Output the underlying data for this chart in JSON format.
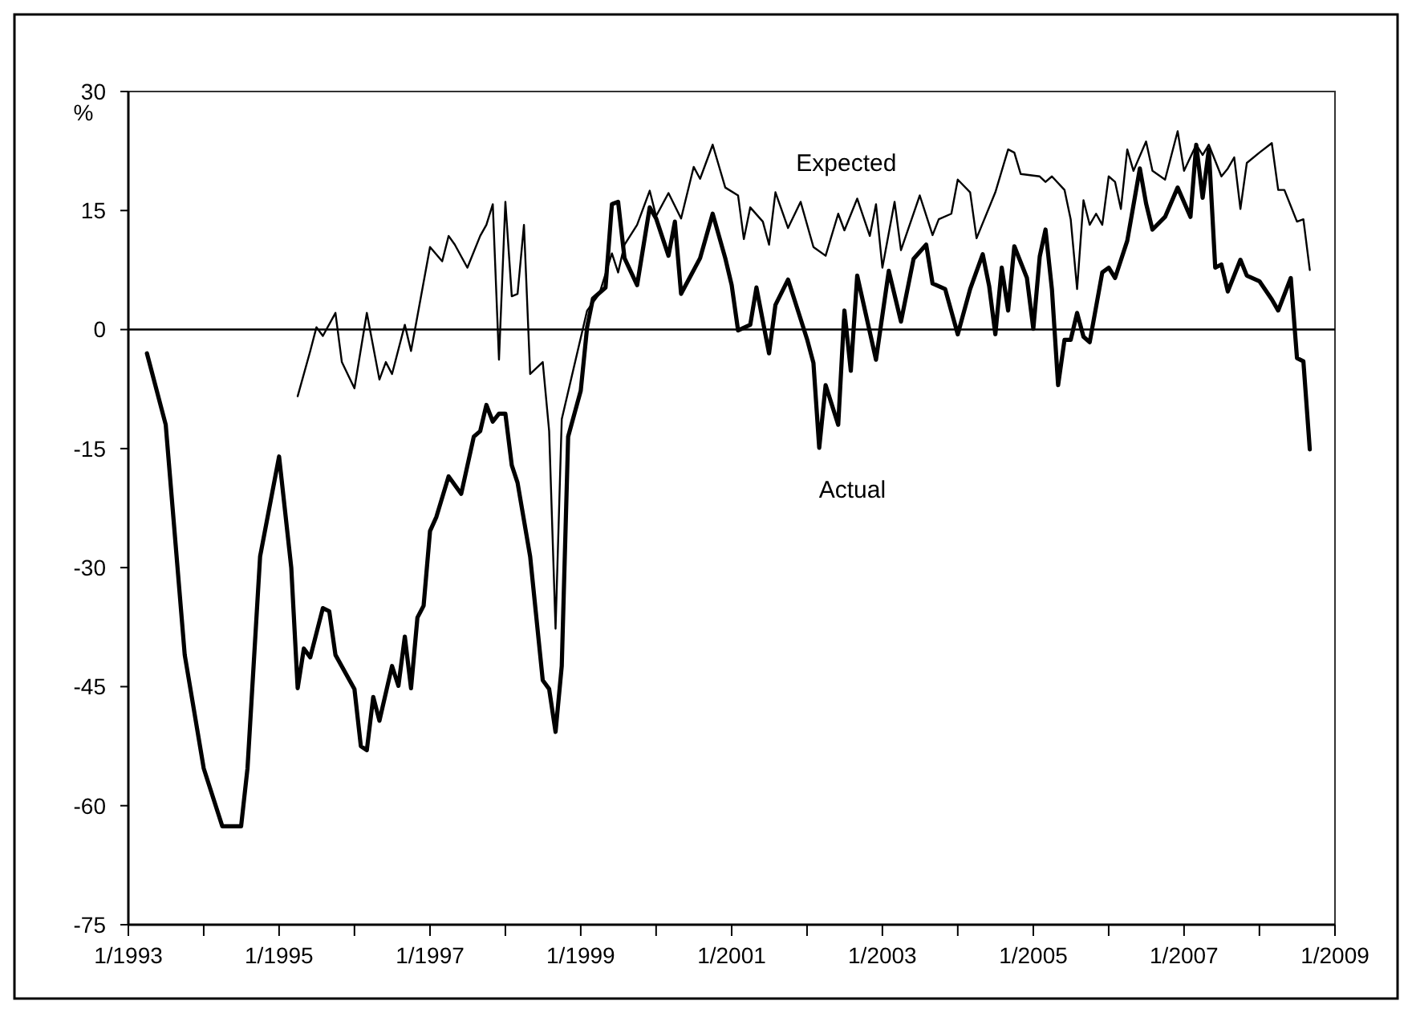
{
  "chart_data": {
    "type": "line",
    "ylabel": "%",
    "xlim": [
      "1993-01",
      "2009-01"
    ],
    "xticks": [
      {
        "value": "1993-01",
        "label": "1/1993"
      },
      {
        "value": "1994-01",
        "label": null
      },
      {
        "value": "1995-01",
        "label": "1/1995"
      },
      {
        "value": "1996-01",
        "label": null
      },
      {
        "value": "1997-01",
        "label": "1/1997"
      },
      {
        "value": "1998-01",
        "label": null
      },
      {
        "value": "1999-01",
        "label": "1/1999"
      },
      {
        "value": "2000-01",
        "label": null
      },
      {
        "value": "2001-01",
        "label": "1/2001"
      },
      {
        "value": "2002-01",
        "label": null
      },
      {
        "value": "2003-01",
        "label": "1/2003"
      },
      {
        "value": "2004-01",
        "label": null
      },
      {
        "value": "2005-01",
        "label": "1/2005"
      },
      {
        "value": "2006-01",
        "label": null
      },
      {
        "value": "2007-01",
        "label": "1/2007"
      },
      {
        "value": "2008-01",
        "label": null
      },
      {
        "value": "2009-01",
        "label": "1/2009"
      }
    ],
    "ylim": [
      -75,
      30
    ],
    "yticks": [
      30,
      15,
      0,
      -15,
      -30,
      -45,
      -60,
      -75
    ],
    "grid": false,
    "legend": false,
    "marker": "none",
    "ref_lines": [
      {
        "axis": "y",
        "value": 0,
        "color": "#000000"
      }
    ],
    "series": [
      {
        "name": "Expected",
        "color": "#000000",
        "line_style": "solid",
        "x": [
          "1995-04",
          "1995-06",
          "1995-07",
          "1995-08",
          "1995-10",
          "1995-11",
          "1996-01",
          "1996-03",
          "1996-05",
          "1996-06",
          "1996-07",
          "1996-09",
          "1996-10",
          "1996-11",
          "1997-01",
          "1997-03",
          "1997-04",
          "1997-05",
          "1997-07",
          "1997-09",
          "1997-10",
          "1997-11",
          "1997-12",
          "1998-01",
          "1998-02",
          "1998-03",
          "1998-04",
          "1998-05",
          "1998-07",
          "1998-08",
          "1998-09",
          "1998-10",
          "1999-02",
          "1999-04",
          "1999-06",
          "1999-07",
          "1999-08",
          "1999-10",
          "1999-12",
          "2000-01",
          "2000-03",
          "2000-05",
          "2000-07",
          "2000-08",
          "2000-10",
          "2000-12",
          "2001-02",
          "2001-03",
          "2001-04",
          "2001-06",
          "2001-07",
          "2001-08",
          "2001-10",
          "2001-12",
          "2002-02",
          "2002-04",
          "2002-06",
          "2002-07",
          "2002-09",
          "2002-11",
          "2002-12",
          "2003-01",
          "2003-03",
          "2003-04",
          "2003-07",
          "2003-09",
          "2003-10",
          "2003-12",
          "2004-01",
          "2004-03",
          "2004-04",
          "2004-07",
          "2004-09",
          "2004-10",
          "2004-11",
          "2005-02",
          "2005-03",
          "2005-04",
          "2005-06",
          "2005-07",
          "2005-08",
          "2005-09",
          "2005-10",
          "2005-11",
          "2005-12",
          "2006-01",
          "2006-02",
          "2006-03",
          "2006-04",
          "2006-05",
          "2006-07",
          "2006-08",
          "2006-10",
          "2006-12",
          "2007-01",
          "2007-03",
          "2007-04",
          "2007-05",
          "2007-07",
          "2007-08",
          "2007-09",
          "2007-10",
          "2007-11",
          "2008-01",
          "2008-03",
          "2008-04",
          "2008-05",
          "2008-07",
          "2008-08",
          "2008-09"
        ],
        "values": [
          -8.4,
          -2.7,
          0.3,
          -0.8,
          2.1,
          -4.1,
          -7.4,
          2.1,
          -6.3,
          -4.1,
          -5.6,
          0.6,
          -2.7,
          1.7,
          10.4,
          8.6,
          11.8,
          10.7,
          7.8,
          11.8,
          13.2,
          15.8,
          -3.8,
          16.1,
          4.2,
          4.5,
          13.2,
          -5.6,
          -4.1,
          -12.8,
          -37.7,
          -11.3,
          2.4,
          4.5,
          9.6,
          7.2,
          10.7,
          13.2,
          17.5,
          14.3,
          17.2,
          14.0,
          20.5,
          19.0,
          23.3,
          17.9,
          16.9,
          11.4,
          15.4,
          13.6,
          10.7,
          17.3,
          12.8,
          16.1,
          10.4,
          9.3,
          14.6,
          12.5,
          16.5,
          11.8,
          15.8,
          7.8,
          16.1,
          10.0,
          16.9,
          11.9,
          13.9,
          14.6,
          18.9,
          17.3,
          11.5,
          17.3,
          22.7,
          22.3,
          19.6,
          19.3,
          18.6,
          19.3,
          17.6,
          13.9,
          5.1,
          16.3,
          13.2,
          14.6,
          13.2,
          19.3,
          18.6,
          15.2,
          22.7,
          20.0,
          23.7,
          20.0,
          18.9,
          25.0,
          20.0,
          23.3,
          22.0,
          23.3,
          19.3,
          20.3,
          21.7,
          15.2,
          21.0,
          22.3,
          23.5,
          17.6,
          17.6,
          13.6,
          13.9,
          7.5
        ]
      },
      {
        "name": "Actual",
        "color": "#000000",
        "line_style": "solid",
        "x": [
          "1993-04",
          "1993-07",
          "1993-10",
          "1994-01",
          "1994-04",
          "1994-07",
          "1994-08",
          "1994-10",
          "1995-01",
          "1995-03",
          "1995-04",
          "1995-05",
          "1995-06",
          "1995-08",
          "1995-09",
          "1995-10",
          "1996-01",
          "1996-02",
          "1996-03",
          "1996-04",
          "1996-05",
          "1996-07",
          "1996-08",
          "1996-09",
          "1996-10",
          "1996-11",
          "1996-12",
          "1997-01",
          "1997-02",
          "1997-04",
          "1997-06",
          "1997-08",
          "1997-09",
          "1997-10",
          "1997-11",
          "1997-12",
          "1998-01",
          "1998-02",
          "1998-03",
          "1998-05",
          "1998-07",
          "1998-08",
          "1998-09",
          "1998-10",
          "1998-11",
          "1999-01",
          "1999-02",
          "1999-03",
          "1999-05",
          "1999-06",
          "1999-07",
          "1999-08",
          "1999-10",
          "1999-12",
          "2000-01",
          "2000-03",
          "2000-04",
          "2000-05",
          "2000-08",
          "2000-10",
          "2000-12",
          "2001-01",
          "2001-02",
          "2001-04",
          "2001-05",
          "2001-07",
          "2001-08",
          "2001-10",
          "2002-01",
          "2002-02",
          "2002-03",
          "2002-04",
          "2002-06",
          "2002-07",
          "2002-08",
          "2002-09",
          "2002-12",
          "2003-02",
          "2003-04",
          "2003-06",
          "2003-08",
          "2003-09",
          "2003-11",
          "2004-01",
          "2004-03",
          "2004-05",
          "2004-06",
          "2004-07",
          "2004-08",
          "2004-09",
          "2004-10",
          "2004-12",
          "2005-01",
          "2005-02",
          "2005-03",
          "2005-04",
          "2005-05",
          "2005-06",
          "2005-07",
          "2005-08",
          "2005-09",
          "2005-10",
          "2005-12",
          "2006-01",
          "2006-02",
          "2006-04",
          "2006-06",
          "2006-07",
          "2006-08",
          "2006-10",
          "2006-12",
          "2007-02",
          "2007-03",
          "2007-04",
          "2007-05",
          "2007-06",
          "2007-07",
          "2007-08",
          "2007-10",
          "2007-11",
          "2008-01",
          "2008-03",
          "2008-04",
          "2008-06",
          "2008-07",
          "2008-08",
          "2008-09"
        ],
        "values": [
          -3,
          -12.0,
          -41,
          -55.3,
          -62.6,
          -62.6,
          -55.3,
          -28.6,
          -16.0,
          -30,
          -45.2,
          -40.2,
          -41.3,
          -35.1,
          -35.5,
          -41,
          -45.3,
          -52.5,
          -53,
          -46.3,
          -49.3,
          -42.4,
          -44.9,
          -38.7,
          -45.2,
          -36.3,
          -34.8,
          -25.4,
          -23.6,
          -18.5,
          -20.7,
          -13.5,
          -12.8,
          -9.5,
          -11.6,
          -10.6,
          -10.6,
          -17.1,
          -19.3,
          -28.6,
          -44.2,
          -45.3,
          -50.7,
          -42.4,
          -13.5,
          -7.7,
          0.3,
          3.9,
          5.3,
          15.8,
          16.1,
          9.0,
          5.6,
          15.4,
          14.0,
          9.3,
          13.6,
          4.5,
          9.0,
          14.6,
          9.0,
          5.6,
          -0.1,
          0.6,
          5.3,
          -3.0,
          3.1,
          6.3,
          -1.2,
          -4.2,
          -14.9,
          -7.0,
          -12,
          2.4,
          -5.2,
          6.8,
          -3.8,
          7.4,
          1.0,
          8.9,
          10.7,
          5.8,
          5.1,
          -0.6,
          5.1,
          9.5,
          5.5,
          -0.6,
          7.8,
          2.4,
          10.5,
          6.5,
          0.1,
          9.2,
          12.6,
          5.1,
          -7.0,
          -1.3,
          -1.3,
          2.1,
          -0.9,
          -1.6,
          7.2,
          7.8,
          6.5,
          11.2,
          20.3,
          15.9,
          12.6,
          14.2,
          17.9,
          14.2,
          23.3,
          16.6,
          22.7,
          7.8,
          8.2,
          4.8,
          8.8,
          6.8,
          6.1,
          3.8,
          2.4,
          6.5,
          -3.6,
          -4.0,
          -15.1
        ]
      }
    ]
  }
}
